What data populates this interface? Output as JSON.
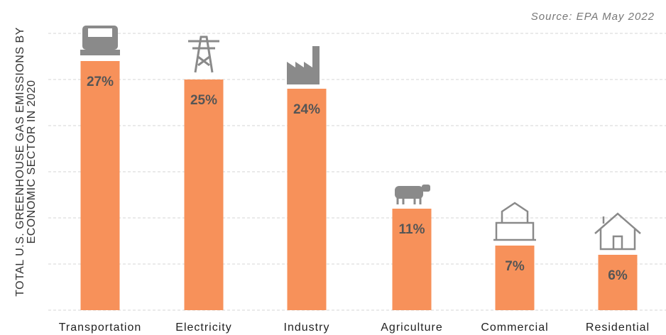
{
  "chart_data": {
    "type": "bar",
    "source": "Source: EPA May 2022",
    "y_label": "TOTAL U.S. GREENHOUSE GAS EMISSIONS BY ECONOMIC SECTOR IN 2020",
    "categories": [
      "Transportation",
      "Electricity",
      "Industry",
      "Agriculture",
      "Commercial",
      "Residential"
    ],
    "values": [
      27,
      25,
      24,
      11,
      7,
      6
    ],
    "value_labels": [
      "27%",
      "25%",
      "24%",
      "11%",
      "7%",
      "6%"
    ],
    "color": "#f7915a",
    "ylim": [
      0,
      30
    ],
    "yticks": [
      0,
      5,
      10,
      15,
      20,
      25,
      30
    ],
    "grid": true
  }
}
